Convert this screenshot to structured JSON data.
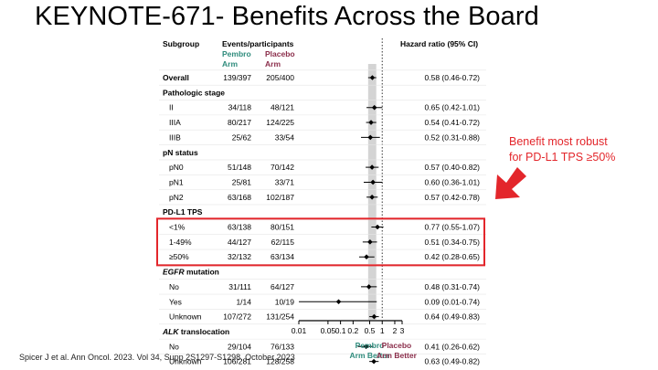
{
  "slide": {
    "title": "KEYNOTE-671- Benefits Across the Board",
    "callout_lines": [
      "Benefit most robust",
      "for PD-L1 TPS ≥50%"
    ],
    "citation": "Spicer J et al. Ann Oncol. 2023. Vol 34, Supp 2S1297-S1298, October 2023"
  },
  "colors": {
    "pembro": "#2e8b7c",
    "placebo": "#8b2e4b",
    "highlight": "#e3262b",
    "arrow": "#e3262b",
    "band": "#d4d4d4"
  },
  "chart_data": {
    "type": "forest",
    "headers": {
      "subgroup": "Subgroup",
      "events": "Events/participants",
      "pembro_arm": [
        "Pembro",
        "Arm"
      ],
      "placebo_arm": [
        "Placebo",
        "Arm"
      ],
      "hr": "Hazard ratio (95% CI)"
    },
    "x_scale": "log",
    "xlim": [
      0.01,
      3
    ],
    "ticks": [
      "0.01",
      "0.05",
      "0.1",
      "0.2",
      "0.5",
      "1",
      "2",
      "3"
    ],
    "tick_values": [
      0.01,
      0.05,
      0.1,
      0.2,
      0.5,
      1,
      2,
      3
    ],
    "overall_hr": 0.58,
    "xlabel_left": [
      "Pembro",
      "Arm Better"
    ],
    "xlabel_right": [
      "Placebo",
      "Arm Better"
    ],
    "rows": [
      {
        "kind": "data",
        "label": "Overall",
        "bold": true,
        "pembro": "139/397",
        "placebo": "205/400",
        "hr": 0.58,
        "lo": 0.46,
        "hi": 0.72,
        "hr_text": "0.58 (0.46-0.72)"
      },
      {
        "kind": "section",
        "label": "Pathologic stage"
      },
      {
        "kind": "data",
        "label": "II",
        "pembro": "34/118",
        "placebo": "48/121",
        "hr": 0.65,
        "lo": 0.42,
        "hi": 1.01,
        "hr_text": "0.65 (0.42-1.01)"
      },
      {
        "kind": "data",
        "label": "IIIA",
        "pembro": "80/217",
        "placebo": "124/225",
        "hr": 0.54,
        "lo": 0.41,
        "hi": 0.72,
        "hr_text": "0.54 (0.41-0.72)"
      },
      {
        "kind": "data",
        "label": "IIIB",
        "pembro": "25/62",
        "placebo": "33/54",
        "hr": 0.52,
        "lo": 0.31,
        "hi": 0.88,
        "hr_text": "0.52 (0.31-0.88)"
      },
      {
        "kind": "section",
        "label": "pN status"
      },
      {
        "kind": "data",
        "label": "pN0",
        "pembro": "51/148",
        "placebo": "70/142",
        "hr": 0.57,
        "lo": 0.4,
        "hi": 0.82,
        "hr_text": "0.57 (0.40-0.82)"
      },
      {
        "kind": "data",
        "label": "pN1",
        "pembro": "25/81",
        "placebo": "33/71",
        "hr": 0.6,
        "lo": 0.36,
        "hi": 1.01,
        "hr_text": "0.60 (0.36-1.01)"
      },
      {
        "kind": "data",
        "label": "pN2",
        "pembro": "63/168",
        "placebo": "102/187",
        "hr": 0.57,
        "lo": 0.42,
        "hi": 0.78,
        "hr_text": "0.57 (0.42-0.78)"
      },
      {
        "kind": "section",
        "label": "PD-L1 TPS"
      },
      {
        "kind": "data",
        "label": "<1%",
        "pembro": "63/138",
        "placebo": "80/151",
        "hr": 0.77,
        "lo": 0.55,
        "hi": 1.07,
        "hr_text": "0.77 (0.55-1.07)",
        "highlight": true
      },
      {
        "kind": "data",
        "label": "1-49%",
        "pembro": "44/127",
        "placebo": "62/115",
        "hr": 0.51,
        "lo": 0.34,
        "hi": 0.75,
        "hr_text": "0.51 (0.34-0.75)",
        "highlight": true
      },
      {
        "kind": "data",
        "label": "≥50%",
        "pembro": "32/132",
        "placebo": "63/134",
        "hr": 0.42,
        "lo": 0.28,
        "hi": 0.65,
        "hr_text": "0.42 (0.28-0.65)",
        "highlight": true
      },
      {
        "kind": "section",
        "label": "EGFR mutation",
        "italic_word": "EGFR",
        "rest": " mutation"
      },
      {
        "kind": "data",
        "label": "No",
        "pembro": "31/111",
        "placebo": "64/127",
        "hr": 0.48,
        "lo": 0.31,
        "hi": 0.74,
        "hr_text": "0.48 (0.31-0.74)"
      },
      {
        "kind": "data",
        "label": "Yes",
        "pembro": "1/14",
        "placebo": "10/19",
        "hr": 0.09,
        "lo": 0.01,
        "hi": 0.74,
        "hr_text": "0.09 (0.01-0.74)"
      },
      {
        "kind": "data",
        "label": "Unknown",
        "pembro": "107/272",
        "placebo": "131/254",
        "hr": 0.64,
        "lo": 0.49,
        "hi": 0.83,
        "hr_text": "0.64 (0.49-0.83)"
      },
      {
        "kind": "section",
        "label": "ALK translocation",
        "italic_word": "ALK",
        "rest": " translocation"
      },
      {
        "kind": "data",
        "label": "No",
        "pembro": "29/104",
        "placebo": "76/133",
        "hr": 0.41,
        "lo": 0.26,
        "hi": 0.62,
        "hr_text": "0.41 (0.26-0.62)"
      },
      {
        "kind": "data",
        "label": "Unknown",
        "pembro": "106/281",
        "placebo": "128/258",
        "hr": 0.63,
        "lo": 0.49,
        "hi": 0.82,
        "hr_text": "0.63 (0.49-0.82)"
      }
    ]
  }
}
